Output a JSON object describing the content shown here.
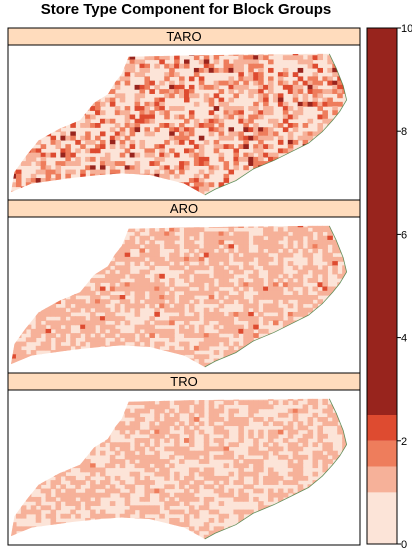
{
  "chart_data": {
    "type": "map",
    "title": "Store Type Component for Block Groups",
    "panels": [
      {
        "name": "TARO",
        "class_distribution": {
          "0-1": 0.52,
          "1-1.5": 0.22,
          "1.5-2": 0.15,
          "2-2.5": 0.08,
          "2.5-10": 0.03
        }
      },
      {
        "name": "ARO",
        "class_distribution": {
          "0-1": 0.4,
          "1-1.5": 0.57,
          "1.5-2": 0.02,
          "2-2.5": 0.01,
          "2.5-10": 0.0
        }
      },
      {
        "name": "TRO",
        "class_distribution": {
          "0-1": 0.5,
          "1-1.5": 0.49,
          "1.5-2": 0.01,
          "2-2.5": 0.0,
          "2.5-10": 0.0
        }
      }
    ],
    "colorbar": {
      "range": [
        0,
        10
      ],
      "ticks": [
        "0",
        "2",
        "4",
        "6",
        "8",
        "10"
      ],
      "breaks": [
        0,
        1,
        1.5,
        2,
        2.5,
        10
      ],
      "colors": [
        "#fce4d8",
        "#f6b199",
        "#ee7d5c",
        "#de4b30",
        "#98241d"
      ]
    },
    "strip_color": "#ffdcbd",
    "outline_color": "#3d7a3d"
  }
}
